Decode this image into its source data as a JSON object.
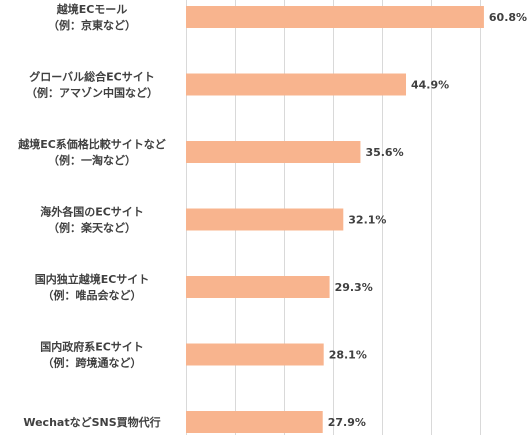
{
  "chart_data": {
    "type": "bar",
    "orientation": "horizontal",
    "categories": [
      [
        "越境ECモール",
        "（例：京東など）"
      ],
      [
        "グローバル総合ECサイト",
        "（例：アマゾン中国など）"
      ],
      [
        "越境EC系価格比較サイトなど",
        "（例：一淘など）"
      ],
      [
        "海外各国のECサイト",
        "（例：楽天など）"
      ],
      [
        "国内独立越境ECサイト",
        "（例：唯品会など）"
      ],
      [
        "国内政府系ECサイト",
        "（例：跨境通など）"
      ],
      [
        "WechatなどSNS買物代行"
      ]
    ],
    "values": [
      60.8,
      44.9,
      35.6,
      32.1,
      29.3,
      28.1,
      27.9
    ],
    "value_labels": [
      "60.8%",
      "44.9%",
      "35.6%",
      "32.1%",
      "29.3%",
      "28.1%",
      "27.9%"
    ],
    "xlim": [
      0,
      70
    ],
    "grid": true,
    "bar_color": "#F8B48E",
    "grid_color": "#D9D9D9",
    "label_color": "#404040"
  }
}
